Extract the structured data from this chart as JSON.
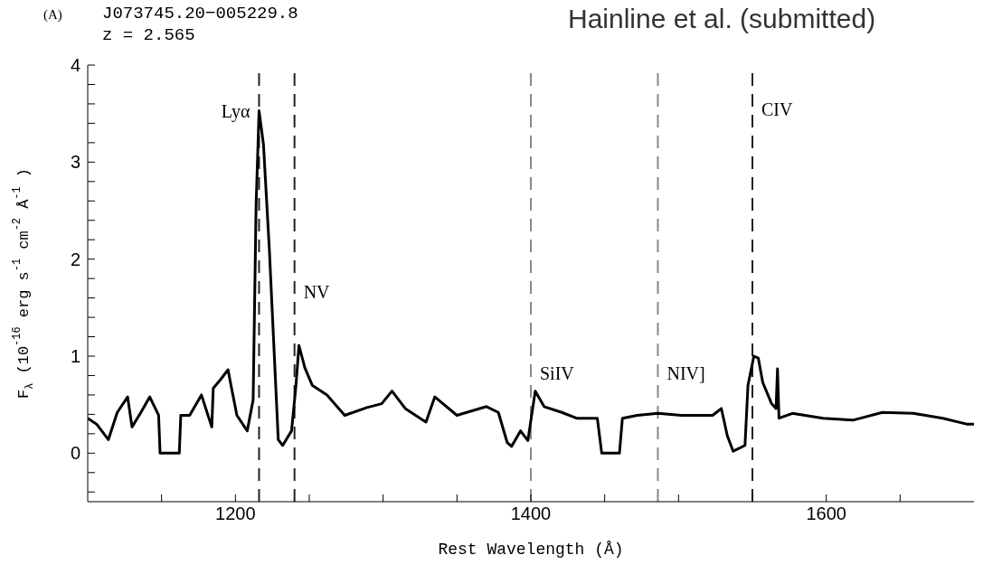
{
  "chart_data": {
    "type": "line",
    "title": "J073745.20−005229.8",
    "subtitle": "z = 2.565",
    "xlabel": "Rest Wavelength (Å)",
    "ylabel": "F$_{λ}$ (10$^{-16}$ erg s$^{-1}$ cm$^{-2}$ Å$^{-1}$)",
    "annotations": [
      "(A)",
      "Hainline et al. (submitted)"
    ],
    "x": [
      1100,
      1106,
      1114,
      1120,
      1127,
      1130,
      1136,
      1142,
      1148,
      1149,
      1162,
      1163,
      1169,
      1177,
      1184,
      1185,
      1190,
      1195,
      1197,
      1201,
      1208,
      1212,
      1214,
      1216,
      1219,
      1223,
      1229,
      1232,
      1238,
      1241,
      1243,
      1247,
      1252,
      1262,
      1274,
      1289,
      1299,
      1306,
      1315,
      1329,
      1335,
      1350,
      1370,
      1378,
      1384,
      1387,
      1393,
      1398,
      1403,
      1409,
      1421,
      1431,
      1445,
      1448,
      1460,
      1462,
      1472,
      1486,
      1502,
      1523,
      1529,
      1533,
      1537,
      1545,
      1547,
      1551,
      1554,
      1557,
      1563,
      1566,
      1567,
      1568,
      1577,
      1598,
      1618,
      1638,
      1659,
      1679,
      1695,
      1700
    ],
    "series": [
      {
        "color": "#000000",
        "values": [
          0.36,
          0.3,
          0.14,
          0.42,
          0.58,
          0.27,
          0.42,
          0.58,
          0.39,
          0.0,
          0.0,
          0.39,
          0.39,
          0.6,
          0.27,
          0.67,
          0.76,
          0.86,
          0.7,
          0.39,
          0.23,
          0.55,
          2.56,
          3.53,
          3.18,
          2.09,
          0.14,
          0.08,
          0.23,
          0.7,
          1.11,
          0.88,
          0.7,
          0.6,
          0.39,
          0.47,
          0.51,
          0.64,
          0.46,
          0.32,
          0.58,
          0.39,
          0.48,
          0.42,
          0.11,
          0.07,
          0.23,
          0.13,
          0.64,
          0.48,
          0.42,
          0.36,
          0.36,
          0.0,
          0.0,
          0.36,
          0.39,
          0.41,
          0.39,
          0.39,
          0.46,
          0.18,
          0.02,
          0.08,
          0.7,
          1.0,
          0.98,
          0.73,
          0.51,
          0.46,
          0.87,
          0.36,
          0.41,
          0.36,
          0.34,
          0.42,
          0.41,
          0.36,
          0.3,
          0.3
        ]
      }
    ],
    "xlim": [
      1100,
      1700
    ],
    "ylim": [
      -0.5,
      4
    ],
    "xticks": [
      {
        "value": 1150,
        "label": null
      },
      1200,
      {
        "value": 1250,
        "label": null
      },
      {
        "value": 1300,
        "label": null
      },
      {
        "value": 1350,
        "label": null
      },
      1400,
      {
        "value": 1450,
        "label": null
      },
      {
        "value": 1500,
        "label": null
      },
      {
        "value": 1550,
        "label": null
      },
      1600,
      {
        "value": 1650,
        "label": null
      }
    ],
    "yticks": [
      {
        "value": -0.4,
        "label": null
      },
      {
        "value": -0.2,
        "label": null
      },
      0,
      {
        "value": 0.2,
        "label": null
      },
      {
        "value": 0.4,
        "label": null
      },
      {
        "value": 0.6,
        "label": null
      },
      {
        "value": 0.8,
        "label": null
      },
      1,
      {
        "value": 1.2,
        "label": null
      },
      {
        "value": 1.4,
        "label": null
      },
      {
        "value": 1.6,
        "label": null
      },
      {
        "value": 1.8,
        "label": null
      },
      2,
      {
        "value": 2.2,
        "label": null
      },
      {
        "value": 2.4,
        "label": null
      },
      {
        "value": 2.6,
        "label": null
      },
      {
        "value": 2.8,
        "label": null
      },
      3,
      {
        "value": 3.2,
        "label": null
      },
      {
        "value": 3.4,
        "label": null
      },
      {
        "value": 3.6,
        "label": null
      },
      {
        "value": 3.8,
        "label": null
      },
      4
    ],
    "ref_lines": [
      {
        "axis": "x",
        "value": 1216,
        "label": "Lyα",
        "color": "#222222",
        "line_style": "dashed"
      },
      {
        "axis": "x",
        "value": 1240,
        "label": "NV",
        "color": "#222222",
        "line_style": "dashed"
      },
      {
        "axis": "x",
        "value": 1400,
        "label": "SiIV",
        "color": "#888888",
        "line_style": "dashed"
      },
      {
        "axis": "x",
        "value": 1486,
        "label": "NIV]",
        "color": "#888888",
        "line_style": "dashed"
      },
      {
        "axis": "x",
        "value": 1550,
        "label": "CIV",
        "color": "#222222",
        "line_style": "dashed"
      }
    ],
    "marker": "none",
    "line_style": "solid"
  }
}
